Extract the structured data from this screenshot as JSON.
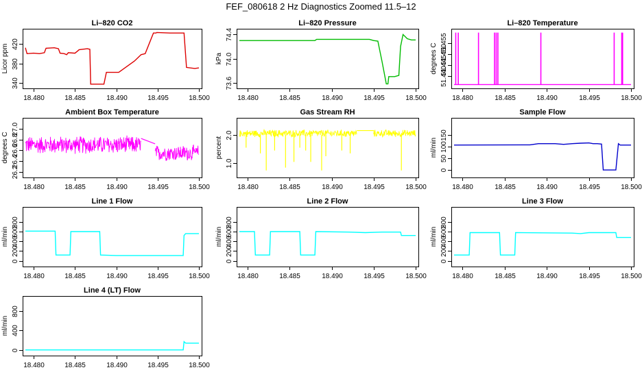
{
  "figure": {
    "title": "FEF_080618  2 Hz Diagnostics Zoomed 11.5–12"
  },
  "chart_data": [
    {
      "type": "line",
      "title": "Li–820 CO2",
      "ylabel": "Licor ppm",
      "color": "#dd0000",
      "xlim": [
        18.479,
        18.5
      ],
      "ylim": [
        335,
        445
      ],
      "xticks": [
        18.48,
        18.485,
        18.49,
        18.495,
        18.5
      ],
      "xtick_labels": [
        "18.480",
        "18.485",
        "18.490",
        "18.495",
        "18.500"
      ],
      "yticks": [
        340,
        380,
        420
      ],
      "ytick_labels": [
        "340",
        "380",
        "420"
      ],
      "x": [
        18.479,
        18.4792,
        18.48,
        18.4807,
        18.4813,
        18.4815,
        18.4825,
        18.483,
        18.4832,
        18.4837,
        18.484,
        18.4842,
        18.485,
        18.4853,
        18.4855,
        18.4865,
        18.4868,
        18.4869,
        18.4885,
        18.4888,
        18.489,
        18.4891,
        18.4903,
        18.4922,
        18.493,
        18.4935,
        18.4945,
        18.4948,
        18.4949,
        18.4965,
        18.4982,
        18.4985,
        18.4995,
        18.5
      ],
      "values": [
        412,
        400,
        401,
        400,
        402,
        411,
        412,
        410,
        401,
        400,
        398,
        402,
        401,
        405,
        408,
        410,
        409,
        338,
        338,
        362,
        362,
        362,
        362,
        385,
        398,
        400,
        442,
        442,
        443,
        442,
        442,
        372,
        370,
        371
      ]
    },
    {
      "type": "line",
      "title": "Li–820 Pressure",
      "ylabel": "kPa",
      "color": "#00bb00",
      "xlim": [
        18.479,
        18.5
      ],
      "ylim": [
        73.55,
        74.45
      ],
      "xticks": [
        18.48,
        18.485,
        18.49,
        18.495,
        18.5
      ],
      "xtick_labels": [
        "18.480",
        "18.485",
        "18.490",
        "18.495",
        "18.500"
      ],
      "yticks": [
        73.6,
        74.0,
        74.4
      ],
      "ytick_labels": [
        "73.6",
        "74.0",
        "74.4"
      ],
      "x": [
        18.479,
        18.485,
        18.488,
        18.4882,
        18.4935,
        18.4945,
        18.495,
        18.4955,
        18.496,
        18.4965,
        18.4967,
        18.4968,
        18.4975,
        18.498,
        18.4982,
        18.4985,
        18.499,
        18.4995,
        18.5
      ],
      "values": [
        74.3,
        74.3,
        74.3,
        74.32,
        74.32,
        74.32,
        74.3,
        74.29,
        73.95,
        73.58,
        73.58,
        73.7,
        73.7,
        73.72,
        74.2,
        74.4,
        74.33,
        74.31,
        74.31
      ]
    },
    {
      "type": "line",
      "title": "Li–820 Temperature",
      "ylabel": "degrees C",
      "color": "#ff00ff",
      "xlim": [
        18.479,
        18.5
      ],
      "ylim": [
        51.4355,
        51.4605
      ],
      "xticks": [
        18.48,
        18.485,
        18.49,
        18.495,
        18.5
      ],
      "xtick_labels": [
        "18.480",
        "18.485",
        "18.490",
        "18.495",
        "18.500"
      ],
      "yticks": [
        51.44,
        51.445,
        51.45,
        51.455
      ],
      "ytick_labels": [
        "51.440",
        "51.445",
        "51.450",
        "51.455"
      ],
      "baseline": 51.436,
      "spike_top": 51.46,
      "spikes_x": [
        18.4792,
        18.4795,
        18.4819,
        18.4838,
        18.484,
        18.4842,
        18.4893,
        18.498,
        18.4989,
        18.499
      ]
    },
    {
      "type": "line",
      "title": "Ambient Box Temperature",
      "ylabel": "degrees C",
      "color": "#ff00ff",
      "xlim": [
        18.479,
        18.5
      ],
      "ylim": [
        26.15,
        27.15
      ],
      "xticks": [
        18.48,
        18.485,
        18.49,
        18.495,
        18.5
      ],
      "xtick_labels": [
        "18.480",
        "18.485",
        "18.490",
        "18.495",
        "18.500"
      ],
      "yticks": [
        26.2,
        26.4,
        26.6,
        26.8,
        27.0
      ],
      "ytick_labels": [
        "26.2",
        "26.4",
        "26.6",
        "26.8",
        "27.0"
      ],
      "band_segments": [
        {
          "x_start": 18.479,
          "x_end": 18.493,
          "center": 26.7,
          "halfwidth": 0.18
        },
        {
          "x_start": 18.4947,
          "x_end": 18.5,
          "center": 26.55,
          "halfwidth": 0.16
        }
      ],
      "gap_line_x": [
        18.493,
        18.4947
      ],
      "gap_line_values": [
        26.82,
        26.72
      ]
    },
    {
      "type": "line",
      "title": "Gas Stream RH",
      "ylabel": "percent",
      "color": "#ffff00",
      "xlim": [
        18.479,
        18.5
      ],
      "ylim": [
        0.6,
        2.5
      ],
      "xticks": [
        18.48,
        18.485,
        18.49,
        18.495,
        18.5
      ],
      "xtick_labels": [
        "18.480",
        "18.485",
        "18.490",
        "18.495",
        "18.500"
      ],
      "yticks": [
        1.0,
        2.0
      ],
      "ytick_labels": [
        "1.0",
        "2.0"
      ],
      "band_segments": [
        {
          "x_start": 18.479,
          "x_end": 18.493,
          "center": 2.05,
          "halfwidth": 0.14
        },
        {
          "x_start": 18.495,
          "x_end": 18.5,
          "center": 2.05,
          "halfwidth": 0.14
        }
      ],
      "gap_line_x": [
        18.493,
        18.495
      ],
      "gap_line_values": [
        2.15,
        2.15
      ],
      "dips_x": [
        18.4798,
        18.4815,
        18.4822,
        18.4832,
        18.4845,
        18.4855,
        18.4862,
        18.4869,
        18.4875,
        18.4888,
        18.4893,
        18.4912,
        18.4922,
        18.4983
      ],
      "dips_low": [
        1.55,
        1.35,
        0.75,
        1.45,
        0.85,
        1.05,
        1.55,
        1.45,
        1.05,
        0.75,
        1.25,
        1.45,
        1.35,
        0.75
      ]
    },
    {
      "type": "line",
      "title": "Sample Flow",
      "ylabel": "ml/min",
      "color": "#0000cc",
      "xlim": [
        18.479,
        18.5
      ],
      "ylim": [
        -20,
        210
      ],
      "xticks": [
        18.48,
        18.485,
        18.49,
        18.495,
        18.5
      ],
      "xtick_labels": [
        "18.480",
        "18.485",
        "18.490",
        "18.495",
        "18.500"
      ],
      "yticks": [
        0,
        50,
        100,
        150
      ],
      "ytick_labels": [
        "0",
        "50",
        "100",
        "150"
      ],
      "x": [
        18.479,
        18.488,
        18.489,
        18.491,
        18.492,
        18.493,
        18.494,
        18.495,
        18.4955,
        18.496,
        18.4965,
        18.4967,
        18.4982,
        18.4985,
        18.4987,
        18.5
      ],
      "values": [
        106,
        107,
        112,
        112,
        109,
        112,
        114,
        115,
        112,
        112,
        110,
        0,
        0,
        112,
        106,
        106
      ]
    },
    {
      "type": "line",
      "title": "Line 1 Flow",
      "ylabel": "ml/min",
      "color": "#00ffff",
      "xlim": [
        18.479,
        18.5
      ],
      "ylim": [
        -60,
        1050
      ],
      "xticks": [
        18.48,
        18.485,
        18.49,
        18.495,
        18.5
      ],
      "xtick_labels": [
        "18.480",
        "18.485",
        "18.490",
        "18.495",
        "18.500"
      ],
      "yticks": [
        0,
        200,
        400,
        600,
        800
      ],
      "ytick_labels": [
        "0",
        "200",
        "400",
        "600",
        "800"
      ],
      "x": [
        18.479,
        18.4826,
        18.4827,
        18.4844,
        18.4845,
        18.488,
        18.4881,
        18.49,
        18.4981,
        18.4982,
        18.4984,
        18.5
      ],
      "values": [
        610,
        610,
        120,
        120,
        600,
        600,
        120,
        110,
        110,
        520,
        560,
        560
      ]
    },
    {
      "type": "line",
      "title": "Line 2 Flow",
      "ylabel": "ml/min",
      "color": "#00ffff",
      "xlim": [
        18.479,
        18.5
      ],
      "ylim": [
        -60,
        1050
      ],
      "xticks": [
        18.48,
        18.485,
        18.49,
        18.495,
        18.5
      ],
      "xtick_labels": [
        "18.480",
        "18.485",
        "18.490",
        "18.495",
        "18.500"
      ],
      "yticks": [
        0,
        200,
        400,
        600,
        800
      ],
      "ytick_labels": [
        "0",
        "200",
        "400",
        "600",
        "800"
      ],
      "x": [
        18.479,
        18.4808,
        18.4809,
        18.4826,
        18.4827,
        18.4862,
        18.4863,
        18.488,
        18.4881,
        18.492,
        18.494,
        18.496,
        18.4982,
        18.4983,
        18.5
      ],
      "values": [
        600,
        600,
        120,
        120,
        600,
        600,
        120,
        120,
        600,
        590,
        580,
        590,
        590,
        520,
        520
      ]
    },
    {
      "type": "line",
      "title": "Line 3 Flow",
      "ylabel": "ml/min",
      "color": "#00ffff",
      "xlim": [
        18.479,
        18.5
      ],
      "ylim": [
        -60,
        1050
      ],
      "xticks": [
        18.48,
        18.485,
        18.49,
        18.495,
        18.5
      ],
      "xtick_labels": [
        "18.480",
        "18.485",
        "18.490",
        "18.495",
        "18.500"
      ],
      "yticks": [
        0,
        200,
        400,
        600,
        800
      ],
      "ytick_labels": [
        "0",
        "200",
        "400",
        "600",
        "800"
      ],
      "x": [
        18.479,
        18.4808,
        18.4809,
        18.4844,
        18.4845,
        18.4862,
        18.4863,
        18.493,
        18.494,
        18.495,
        18.4982,
        18.4983,
        18.5
      ],
      "values": [
        120,
        120,
        580,
        580,
        120,
        120,
        580,
        570,
        560,
        580,
        580,
        480,
        480
      ]
    },
    {
      "type": "line",
      "title": "Line 4 (LT) Flow",
      "ylabel": "ml/min",
      "color": "#00ffff",
      "xlim": [
        18.479,
        18.5
      ],
      "ylim": [
        -60,
        1050
      ],
      "xticks": [
        18.48,
        18.485,
        18.49,
        18.495,
        18.5
      ],
      "xtick_labels": [
        "18.480",
        "18.485",
        "18.490",
        "18.495",
        "18.500"
      ],
      "yticks": [
        0,
        400,
        800
      ],
      "ytick_labels": [
        "0",
        "400",
        "800"
      ],
      "x": [
        18.479,
        18.4981,
        18.4982,
        18.4984,
        18.5
      ],
      "values": [
        0,
        0,
        170,
        140,
        140
      ]
    }
  ]
}
